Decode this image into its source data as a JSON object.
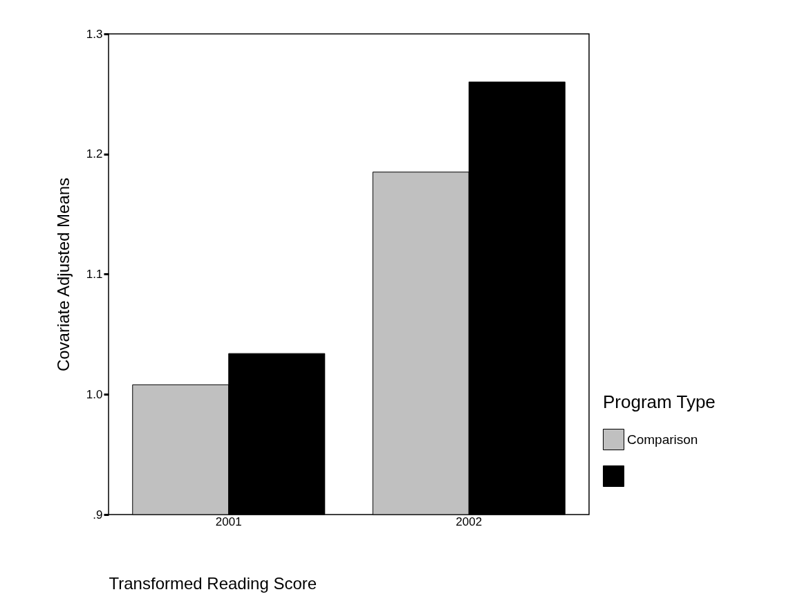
{
  "chart_data": {
    "type": "bar",
    "categories": [
      "2001",
      "2002"
    ],
    "series": [
      {
        "name": "Comparison",
        "color": "#c0c0c0",
        "values": [
          1.008,
          1.185
        ]
      },
      {
        "color": "#000000",
        "values": [
          1.034,
          1.26
        ]
      }
    ],
    "xlabel": "Transformed Reading Score",
    "ylabel": "Covariate Adjusted Means",
    "legend_title": "Program Type",
    "ylim": [
      0.9,
      1.3
    ],
    "yticks": [
      {
        "value": 0.9,
        "label": ".9"
      },
      {
        "value": 1.0,
        "label": "1.0"
      },
      1.1,
      1.2,
      1.3
    ],
    "grid": false,
    "legend": "right"
  }
}
